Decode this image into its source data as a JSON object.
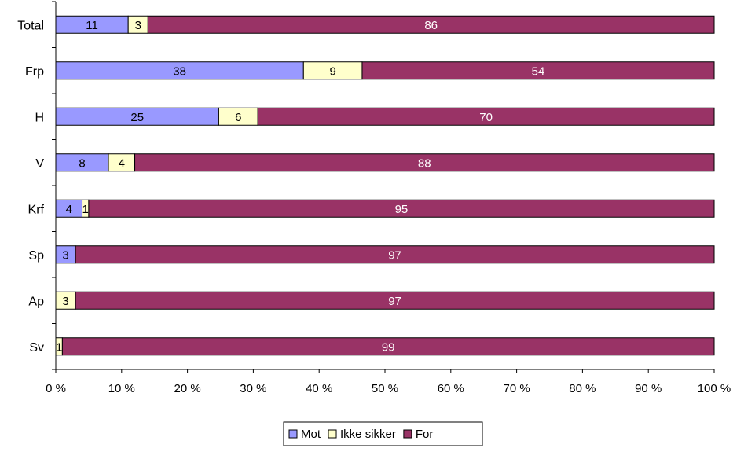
{
  "chart_data": {
    "type": "bar",
    "orientation": "horizontal",
    "stacked": "percent",
    "title": "",
    "xlabel": "",
    "ylabel": "",
    "categories": [
      "Total",
      "Frp",
      "H",
      "V",
      "Krf",
      "Sp",
      "Ap",
      "Sv"
    ],
    "series": [
      {
        "name": "Mot",
        "color": "#9999ff",
        "label_color": "#000000",
        "values": [
          11,
          38,
          25,
          8,
          4,
          3,
          0,
          0
        ]
      },
      {
        "name": "Ikke sikker",
        "color": "#ffffcc",
        "label_color": "#000000",
        "values": [
          3,
          9,
          6,
          4,
          1,
          0,
          3,
          1
        ]
      },
      {
        "name": "For",
        "color": "#993366",
        "label_color": "#ffffff",
        "values": [
          86,
          54,
          70,
          88,
          95,
          97,
          97,
          99
        ]
      }
    ],
    "xlim": [
      0,
      100
    ],
    "xticks": [
      "0 %",
      "10 %",
      "20 %",
      "30 %",
      "40 %",
      "50 %",
      "60 %",
      "70 %",
      "80 %",
      "90 %",
      "100 %"
    ],
    "grid": false,
    "legend_position": "bottom"
  }
}
